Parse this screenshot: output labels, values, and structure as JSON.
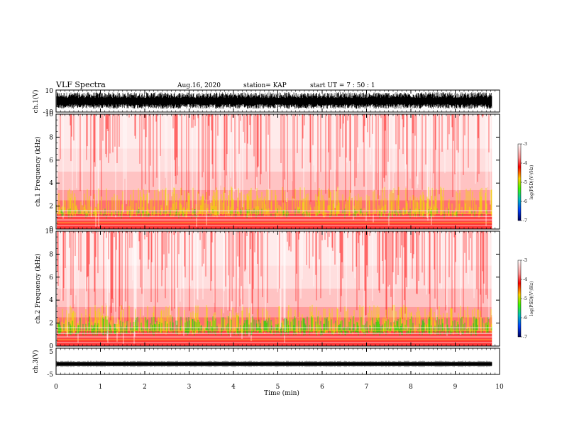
{
  "header": {
    "title": "VLF Spectra",
    "date": "Aug.16, 2020",
    "station": "station= KAP",
    "start": "start UT =   7 : 50 : 1"
  },
  "chart_data": [
    {
      "type": "line",
      "panel": "ch1-waveform",
      "ylabel": "ch.1(V)",
      "ylim": [
        -10,
        10
      ],
      "yticks": [
        "10",
        "-10"
      ],
      "x_range": [
        0,
        9.83
      ],
      "approx_amplitude": [
        -7,
        8
      ]
    },
    {
      "type": "heatmap",
      "panel": "ch1-spectrogram",
      "ylabel": "ch.1 Frequency (kHz)",
      "ylim": [
        0,
        10
      ],
      "yticks": [
        "0",
        "2",
        "4",
        "6",
        "8",
        "10"
      ],
      "x_range": [
        0,
        9.83
      ],
      "colorbar": {
        "label": "log(PSD)(V²/Hz)",
        "range": [
          -7,
          -3
        ],
        "ticks": [
          "-3",
          "-4",
          "-5",
          "-6",
          "-7"
        ]
      }
    },
    {
      "type": "heatmap",
      "panel": "ch2-spectrogram",
      "ylabel": "ch.2 Frequency (kHz)",
      "ylim": [
        0,
        10
      ],
      "yticks": [
        "0",
        "2",
        "4",
        "6",
        "8",
        "10"
      ],
      "x_range": [
        0,
        9.83
      ],
      "colorbar": {
        "label": "log(PSD)(V²/Hz)",
        "range": [
          -7,
          -3
        ],
        "ticks": [
          "-3",
          "-4",
          "-5",
          "-6",
          "-7"
        ]
      }
    },
    {
      "type": "line",
      "panel": "ch3-waveform",
      "ylabel": "ch.3(V)",
      "ylim": [
        -5,
        5
      ],
      "yticks": [
        "5",
        "-5"
      ],
      "x_range": [
        0,
        9.83
      ],
      "approx_level": -1
    }
  ],
  "xaxis": {
    "label": "Time (min)",
    "range": [
      0,
      10
    ],
    "ticks": [
      "0",
      "1",
      "2",
      "3",
      "4",
      "5",
      "6",
      "7",
      "8",
      "9",
      "10"
    ]
  },
  "colors": {
    "waveform": "#000000",
    "spec_low": "#0000c8",
    "spec_mid": "#00e000",
    "spec_yellow": "#f0e000",
    "spec_high": "#ff0000"
  }
}
